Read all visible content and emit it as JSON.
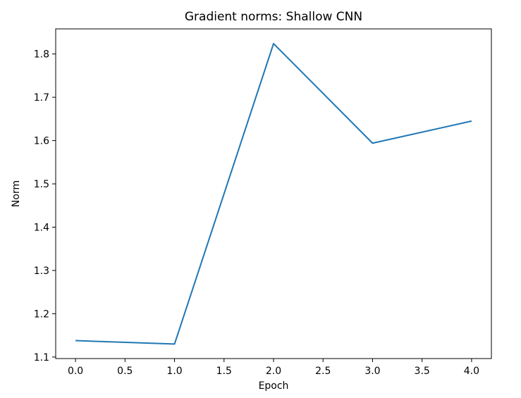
{
  "chart_data": {
    "type": "line",
    "title": "Gradient norms: Shallow CNN",
    "xlabel": "Epoch",
    "ylabel": "Norm",
    "x": [
      0,
      1,
      2,
      3,
      4
    ],
    "series": [
      {
        "values": [
          1.138,
          1.13,
          1.824,
          1.594,
          1.645
        ],
        "color": "#1f77b4"
      }
    ],
    "xlim": [
      -0.2,
      4.2
    ],
    "ylim": [
      1.0965,
      1.858
    ],
    "xticks": [
      0.0,
      0.5,
      1.0,
      1.5,
      2.0,
      2.5,
      3.0,
      3.5,
      4.0
    ],
    "xtick_labels": [
      "0.0",
      "0.5",
      "1.0",
      "1.5",
      "2.0",
      "2.5",
      "3.0",
      "3.5",
      "4.0"
    ],
    "yticks": [
      1.1,
      1.2,
      1.3,
      1.4,
      1.5,
      1.6,
      1.7,
      1.8
    ],
    "ytick_labels": [
      "1.1",
      "1.2",
      "1.3",
      "1.4",
      "1.5",
      "1.6",
      "1.7",
      "1.8"
    ],
    "grid": false,
    "legend": false
  }
}
